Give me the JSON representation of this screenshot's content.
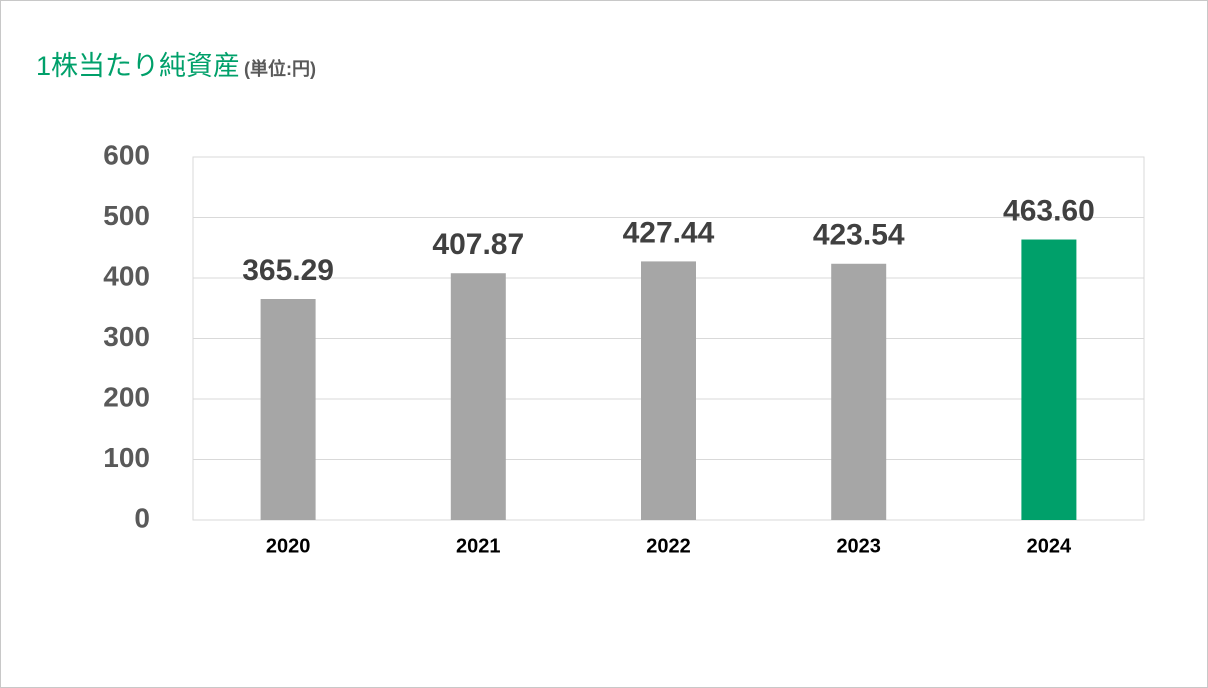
{
  "chart_data": {
    "type": "bar",
    "title": "1株当たり純資産",
    "subtitle": "(単位:円)",
    "categories": [
      "2020",
      "2021",
      "2022",
      "2023",
      "2024"
    ],
    "values": [
      365.29,
      407.87,
      427.44,
      423.54,
      463.6
    ],
    "value_labels": [
      "365.29",
      "407.87",
      "427.44",
      "423.54",
      "463.60"
    ],
    "colors": [
      "#a6a6a6",
      "#a6a6a6",
      "#a6a6a6",
      "#a6a6a6",
      "#00a06a"
    ],
    "ylim": [
      0,
      600
    ],
    "yticks": [
      0,
      100,
      200,
      300,
      400,
      500,
      600
    ],
    "grid": true
  }
}
